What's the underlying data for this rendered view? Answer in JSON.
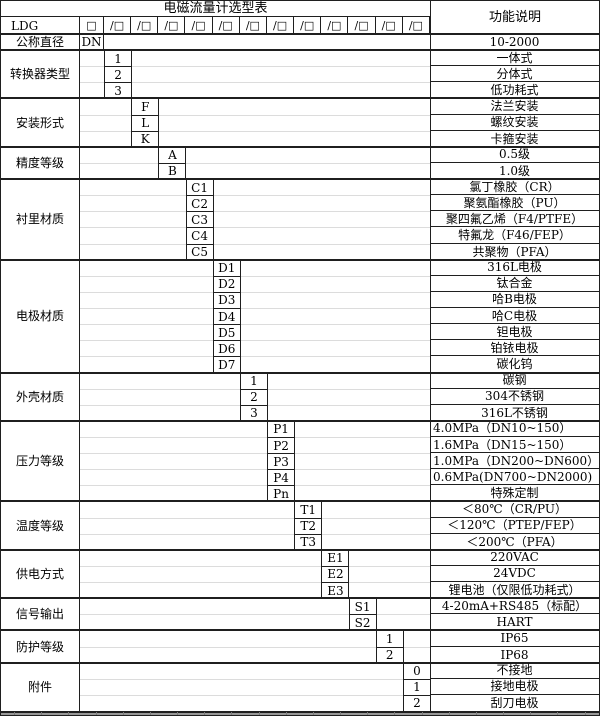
{
  "title": "电磁流量计选型表",
  "function_header": "功能说明",
  "model_row": {
    "prefix": "LDG",
    "base_box": "□",
    "slot_box": "/□",
    "slot_count": 12
  },
  "rows": {
    "diameter": {
      "label": "公称直径",
      "code": "DN",
      "desc": "10-2000"
    }
  },
  "blocks": [
    {
      "label": "转换器类型",
      "column": 0,
      "options": [
        {
          "code": "1",
          "desc": "一体式"
        },
        {
          "code": "2",
          "desc": "分体式"
        },
        {
          "code": "3",
          "desc": "低功耗式"
        }
      ]
    },
    {
      "label": "安装形式",
      "column": 1,
      "options": [
        {
          "code": "F",
          "desc": "法兰安装"
        },
        {
          "code": "L",
          "desc": "螺纹安装"
        },
        {
          "code": "K",
          "desc": "卡箍安装"
        }
      ]
    },
    {
      "label": "精度等级",
      "column": 2,
      "options": [
        {
          "code": "A",
          "desc": "0.5级"
        },
        {
          "code": "B",
          "desc": "1.0级"
        }
      ]
    },
    {
      "label": "衬里材质",
      "column": 3,
      "options": [
        {
          "code": "C1",
          "desc": "氯丁橡胶（CR）"
        },
        {
          "code": "C2",
          "desc": "聚氨酯橡胶（PU）"
        },
        {
          "code": "C3",
          "desc": "聚四氟乙烯（F4/PTFE）"
        },
        {
          "code": "C4",
          "desc": "特氟龙（F46/FEP）"
        },
        {
          "code": "C5",
          "desc": "共聚物（PFA）"
        }
      ]
    },
    {
      "label": "电极材质",
      "column": 4,
      "options": [
        {
          "code": "D1",
          "desc": "316L电极"
        },
        {
          "code": "D2",
          "desc": "钛合金"
        },
        {
          "code": "D3",
          "desc": "哈B电极"
        },
        {
          "code": "D4",
          "desc": "哈C电极"
        },
        {
          "code": "D5",
          "desc": "钽电极"
        },
        {
          "code": "D6",
          "desc": "铂铱电极"
        },
        {
          "code": "D7",
          "desc": "碳化钨"
        }
      ]
    },
    {
      "label": "外壳材质",
      "column": 5,
      "options": [
        {
          "code": "1",
          "desc": "碳钢"
        },
        {
          "code": "2",
          "desc": "304不锈钢"
        },
        {
          "code": "3",
          "desc": "316L不锈钢"
        }
      ]
    },
    {
      "label": "压力等级",
      "column": 6,
      "options": [
        {
          "code": "P1",
          "desc": "4.0MPa（DN10~150）",
          "align": "left"
        },
        {
          "code": "P2",
          "desc": "1.6MPa（DN15~150）",
          "align": "left"
        },
        {
          "code": "P3",
          "desc": "1.0MPa（DN200~DN600）",
          "align": "left"
        },
        {
          "code": "P4",
          "desc": "0.6MPa(DN700~DN2000)",
          "align": "left"
        },
        {
          "code": "Pn",
          "desc": "特殊定制"
        }
      ]
    },
    {
      "label": "温度等级",
      "column": 7,
      "options": [
        {
          "code": "T1",
          "desc": "＜80℃（CR/PU）"
        },
        {
          "code": "T2",
          "desc": "＜120℃（PTEP/FEP）"
        },
        {
          "code": "T3",
          "desc": "＜200℃（PFA）"
        }
      ]
    },
    {
      "label": "供电方式",
      "column": 8,
      "options": [
        {
          "code": "E1",
          "desc": "220VAC"
        },
        {
          "code": "E2",
          "desc": "24VDC"
        },
        {
          "code": "E3",
          "desc": "锂电池（仅限低功耗式）"
        }
      ]
    },
    {
      "label": "信号输出",
      "column": 9,
      "options": [
        {
          "code": "S1",
          "desc": "4-20mA+RS485（标配）"
        },
        {
          "code": "S2",
          "desc": "HART"
        }
      ]
    },
    {
      "label": "防护等级",
      "column": 10,
      "options": [
        {
          "code": "1",
          "desc": "IP65"
        },
        {
          "code": "2",
          "desc": "IP68"
        }
      ]
    },
    {
      "label": "附件",
      "column": 11,
      "options": [
        {
          "code": "0",
          "desc": "不接地"
        },
        {
          "code": "1",
          "desc": "接地电极"
        },
        {
          "code": "2",
          "desc": "刮刀电极"
        }
      ]
    }
  ],
  "colors": {
    "border": "#1f1f1f",
    "grid_faint": "#dcdcdc",
    "bottom_band": "#979797",
    "background": "#ffffff",
    "text": "#000000"
  }
}
